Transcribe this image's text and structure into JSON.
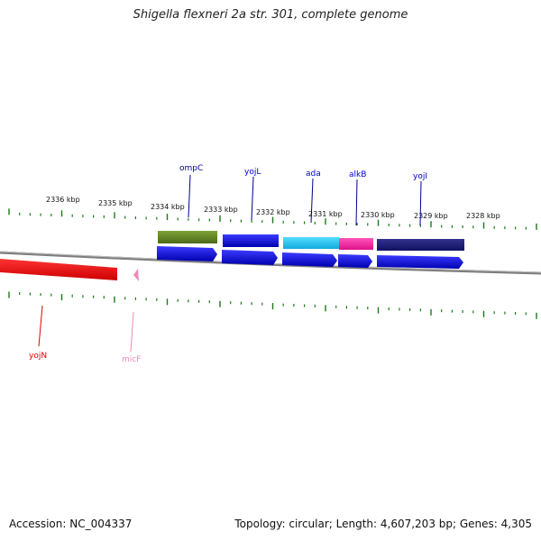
{
  "title": "Shigella flexneri 2a str. 301, complete genome",
  "footer": {
    "accession": "Accession: NC_004337",
    "summary": "Topology: circular; Length: 4,607,203 bp; Genes: 4,305"
  },
  "scale": {
    "unit": "kbp",
    "labels": [
      "2336 kbp",
      "2335 kbp",
      "2334 kbp",
      "2333 kbp",
      "2332 kbp",
      "2331 kbp",
      "2330 kbp",
      "2329 kbp",
      "2328 kbp"
    ],
    "tick_color": "#1a7a1a"
  },
  "backbone_color": "#8c8c8c",
  "genes": [
    {
      "name": "ompC",
      "color": "#00008b"
    },
    {
      "name": "yojL",
      "color": "#0000cd"
    },
    {
      "name": "ada",
      "color": "#0000cd"
    },
    {
      "name": "alkB",
      "color": "#0000cd"
    },
    {
      "name": "yojI",
      "color": "#0000cd"
    },
    {
      "name": "yojN",
      "color": "#e00000"
    },
    {
      "name": "micF",
      "color": "#ee88bb"
    }
  ],
  "feature_colors": {
    "cds": "#0000dd",
    "ompC_bar": "#6b8e23",
    "yojL_bar": "#0000dd",
    "ada_bar": "#22ccee",
    "alkB_bar": "#ee3399",
    "yojI_bar": "#1a1a7a",
    "yojN_bar": "#ee0000",
    "micF_mark": "#ee88bb"
  }
}
